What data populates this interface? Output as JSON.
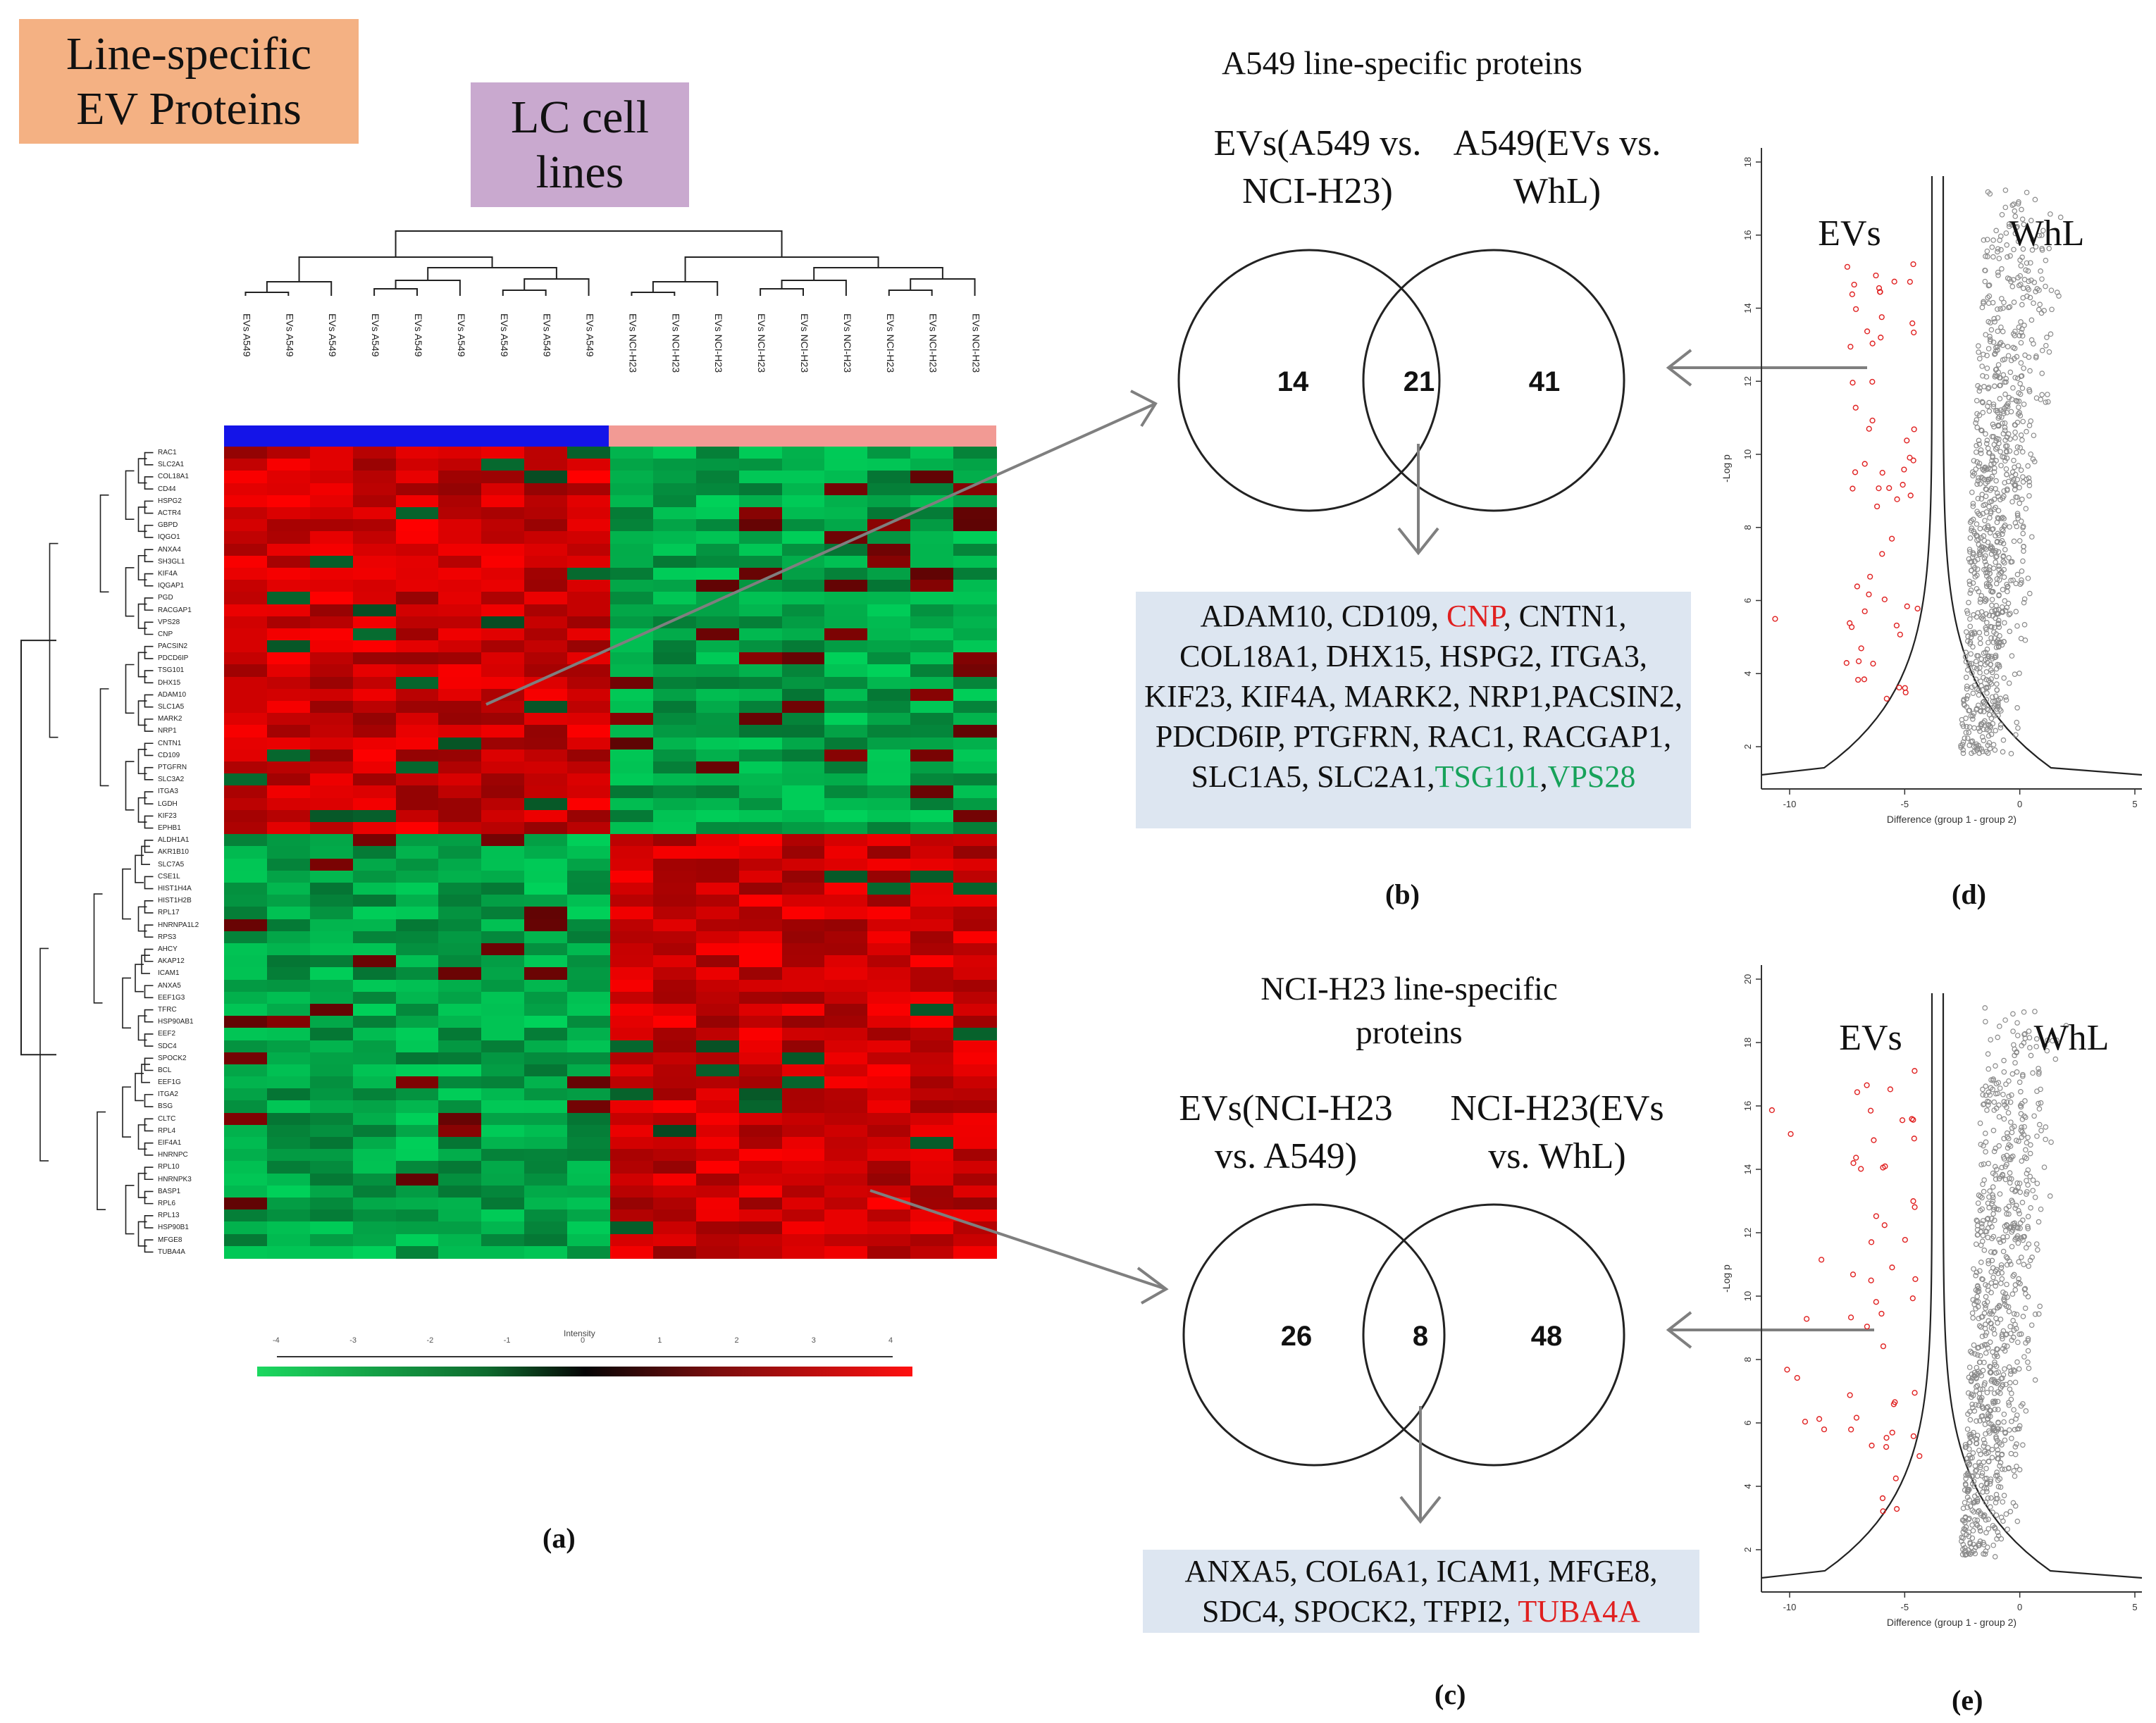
{
  "badges": {
    "line_specific": "Line-specific EV Proteins",
    "lc_cell_lines": "LC cell lines"
  },
  "heatmap": {
    "column_labels": [
      "EVs A549",
      "EVs A549",
      "EVs A549",
      "EVs A549",
      "EVs A549",
      "EVs A549",
      "EVs A549",
      "EVs A549",
      "EVs A549",
      "EVs NCI-H23",
      "EVs NCI-H23",
      "EVs NCI-H23",
      "EVs NCI-H23",
      "EVs NCI-H23",
      "EVs NCI-H23",
      "EVs NCI-H23",
      "EVs NCI-H23",
      "EVs NCI-H23"
    ],
    "group_colors": {
      "a549": "#1414e8",
      "nci_h23": "#f29a94"
    },
    "row_labels": [
      "RAC1",
      "SLC2A1",
      "COL18A1",
      "CD44",
      "HSPG2",
      "ACTR4",
      "GBPD",
      "IQGO1",
      "ANXA4",
      "SH3GL1",
      "KIF4A",
      "IQGAP1",
      "PGD",
      "RACGAP1",
      "VPS28",
      "CNP",
      "PACSIN2",
      "PDCD6IP",
      "TSG101",
      "DHX15",
      "ADAM10",
      "SLC1A5",
      "MARK2",
      "NRP1",
      "CNTN1",
      "CD109",
      "PTGFRN",
      "SLC3A2",
      "ITGA3",
      "LGDH",
      "KIF23",
      "EPHB1",
      "ALDH1A1",
      "AKR1B10",
      "SLC7A5",
      "CSE1L",
      "HIST1H4A",
      "HIST1H2B",
      "RPL17",
      "HNRNPA1L2",
      "RPS3",
      "AHCY",
      "AKAP12",
      "ICAM1",
      "ANXA5",
      "EEF1G3",
      "TFRC",
      "HSP90AB1",
      "EEF2",
      "SDC4",
      "SPOCK2",
      "BCL",
      "EEF1G",
      "ITGA2",
      "BSG",
      "CLTC",
      "RPL4",
      "EIF4A1",
      "HNRNPC",
      "RPL10",
      "HNRNPK3",
      "BASP1",
      "RPL6",
      "RPL13",
      "HSP90B1",
      "MFGE8",
      "TUBA4A"
    ],
    "scale_ticks": [
      "-4",
      "-3",
      "-2",
      "-1",
      "0",
      "1",
      "2",
      "3",
      "4"
    ],
    "scale_title": "Intensity",
    "caption": "(a)"
  },
  "panel_b": {
    "title": "A549 line-specific proteins",
    "left_set": "EVs(A549 vs. NCI-H23)",
    "right_set": "A549(EVs vs. WhL)",
    "left_only": "14",
    "overlap": "21",
    "right_only": "41",
    "proteins": [
      {
        "text": "ADAM10, CD109, ",
        "color": ""
      },
      {
        "text": "CNP",
        "color": "red"
      },
      {
        "text": ", CNTN1, COL18A1, DHX15, HSPG2, ITGA3, KIF23, KIF4A, MARK2, NRP1,PACSIN2, PDCD6IP, PTGFRN, RAC1, RACGAP1, SLC1A5, SLC2A1,",
        "color": ""
      },
      {
        "text": "TSG101",
        "color": "green"
      },
      {
        "text": ",",
        "color": ""
      },
      {
        "text": "VPS28",
        "color": "green"
      }
    ],
    "caption": "(b)"
  },
  "panel_c": {
    "title": "NCI-H23 line-specific proteins",
    "left_set": "EVs(NCI-H23 vs. A549)",
    "right_set": "NCI-H23(EVs vs. WhL)",
    "left_only": "26",
    "overlap": "8",
    "right_only": "48",
    "proteins": [
      {
        "text": "ANXA5, COL6A1, ICAM1, MFGE8, SDC4, SPOCK2, TFPI2, ",
        "color": ""
      },
      {
        "text": "TUBA4A",
        "color": "red"
      }
    ],
    "caption": "(c)"
  },
  "panel_d": {
    "left_label": "EVs",
    "right_label": "WhL",
    "xlabel": "Difference (group 1 - group 2)",
    "ylabel": "-Log p",
    "x_ticks": [
      "-10",
      "-5",
      "0",
      "5"
    ],
    "y_ticks": [
      "2",
      "4",
      "6",
      "8",
      "10",
      "12",
      "14",
      "16",
      "18"
    ],
    "caption": "(d)"
  },
  "panel_e": {
    "left_label": "EVs",
    "right_label": "WhL",
    "xlabel": "Difference (group 1 - group 2)",
    "ylabel": "-Log p",
    "x_ticks": [
      "-10",
      "-5",
      "0",
      "5"
    ],
    "y_ticks": [
      "2",
      "4",
      "6",
      "8",
      "10",
      "12",
      "14",
      "16",
      "18",
      "20"
    ],
    "caption": "(e)"
  },
  "colors": {
    "badge_orange": "#f4b183",
    "badge_purple": "#c9a9cf",
    "box_fill": "#dde6f1",
    "red_text": "#e02020",
    "green_text": "#17a25a",
    "arrow": "#7f7f7f"
  }
}
